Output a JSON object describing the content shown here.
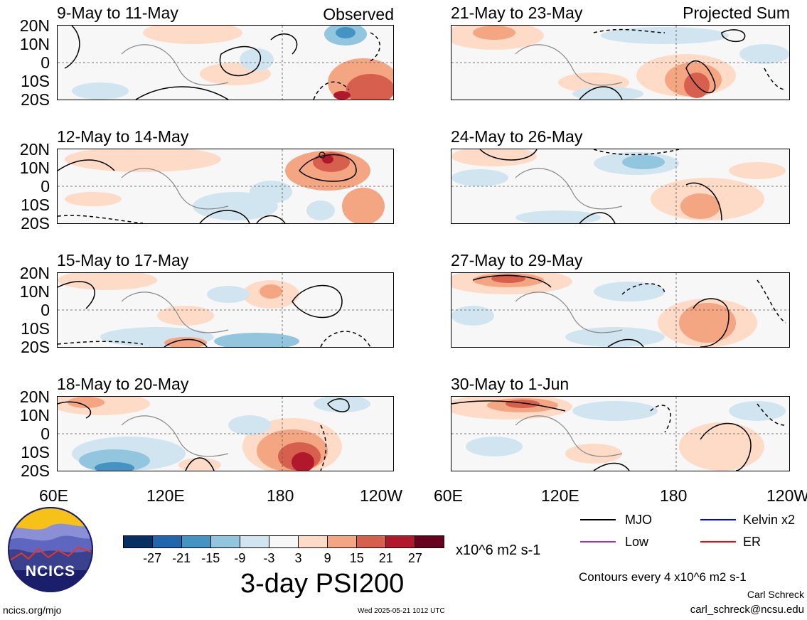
{
  "panels": [
    {
      "title": "9-May to 11-May",
      "tag": "Observed"
    },
    {
      "title": "12-May to 14-May",
      "tag": ""
    },
    {
      "title": "15-May to 17-May",
      "tag": ""
    },
    {
      "title": "18-May to 20-May",
      "tag": ""
    },
    {
      "title": "21-May to 23-May",
      "tag": "Projected Sum"
    },
    {
      "title": "24-May to 26-May",
      "tag": ""
    },
    {
      "title": "27-May to 29-May",
      "tag": ""
    },
    {
      "title": "30-May to 1-Jun",
      "tag": ""
    }
  ],
  "lat_labels": [
    "20N",
    "10N",
    "0",
    "10S",
    "20S"
  ],
  "lon_labels": [
    "60E",
    "120E",
    "180",
    "120W"
  ],
  "lon_labels_right": [
    "60E",
    "120E",
    "180",
    "120W"
  ],
  "colorbar": {
    "colors": [
      "#053061",
      "#2166ac",
      "#4393c3",
      "#92c5de",
      "#d1e5f0",
      "#f7f7f7",
      "#fddbc7",
      "#f4a582",
      "#d6604d",
      "#b2182b",
      "#67001f"
    ],
    "ticks": [
      "-27",
      "-21",
      "-15",
      "-9",
      "-3",
      "3",
      "9",
      "15",
      "21",
      "27"
    ],
    "units": "x10^6 m2 s-1"
  },
  "main_title": "3-day PSI200",
  "logo_text": "NCICS",
  "legend": [
    {
      "label": "MJO",
      "color": "#000000"
    },
    {
      "label": "Kelvin x2",
      "color": "#0000ff"
    },
    {
      "label": "Low",
      "color": "#9933cc"
    },
    {
      "label": "ER",
      "color": "#ff0000"
    }
  ],
  "contour_note": "Contours every 4 x10^6 m2 s-1",
  "author": "Carl Schreck",
  "email": "carl_schreck@ncsu.edu",
  "website": "ncics.org/mjo",
  "timestamp": "Wed 2025-05-21 1012 UTC"
}
